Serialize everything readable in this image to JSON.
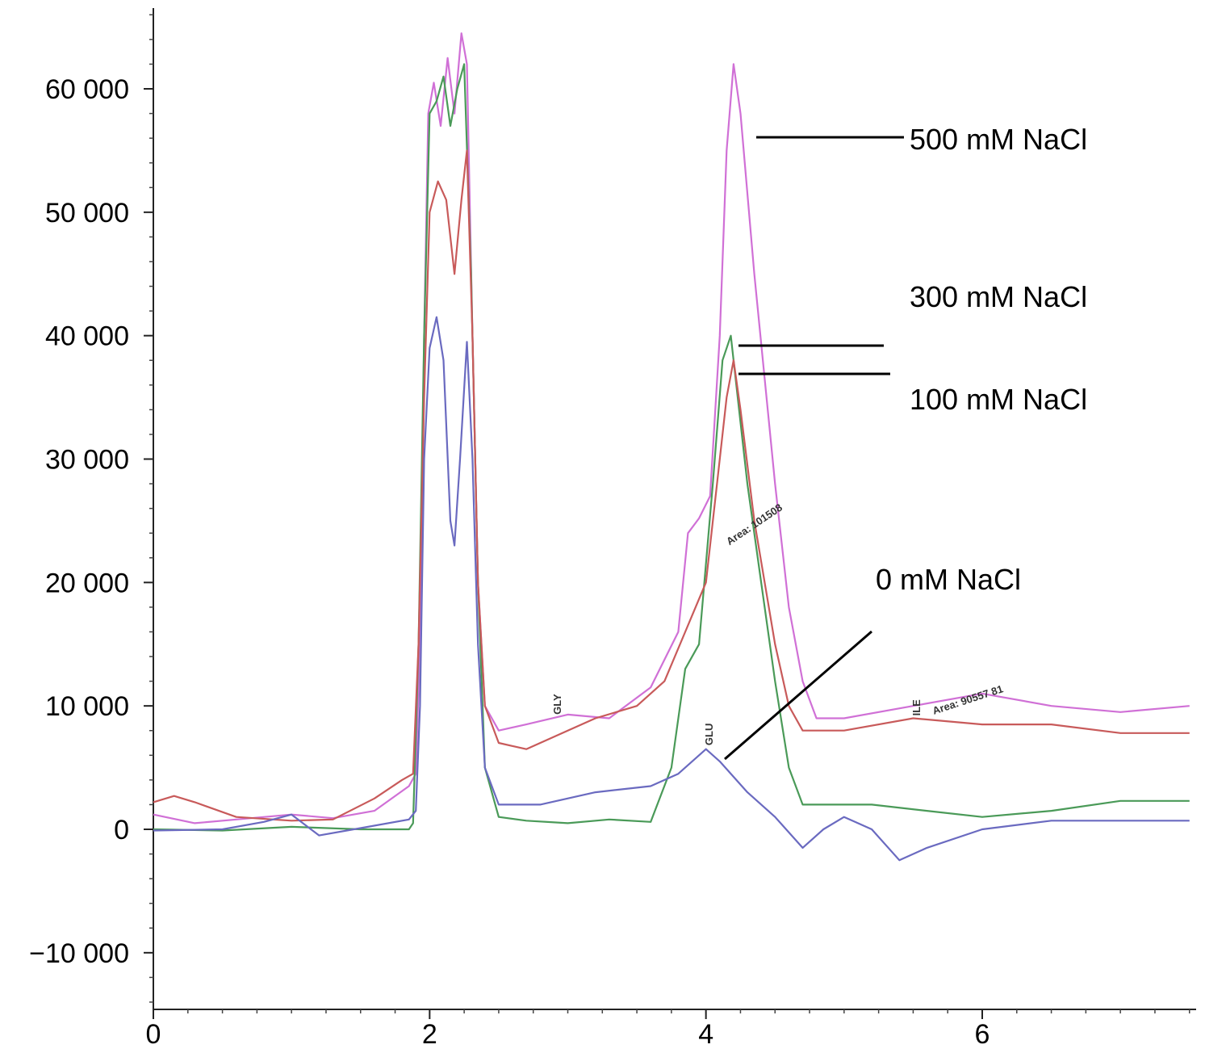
{
  "chart_data": {
    "type": "line",
    "title": "",
    "xlabel": "",
    "ylabel": "",
    "xlim": [
      0,
      7.5
    ],
    "ylim": [
      -15000,
      66000
    ],
    "x_ticks": [
      {
        "value": 0,
        "label": "0"
      },
      {
        "value": 2,
        "label": "2"
      },
      {
        "value": 4,
        "label": "4"
      },
      {
        "value": 6,
        "label": "6"
      }
    ],
    "y_ticks": [
      {
        "value": -10000,
        "label": "−10 000"
      },
      {
        "value": 0,
        "label": "0"
      },
      {
        "value": 10000,
        "label": "10 000"
      },
      {
        "value": 20000,
        "label": "20 000"
      },
      {
        "value": 30000,
        "label": "30 000"
      },
      {
        "value": 40000,
        "label": "40 000"
      },
      {
        "value": 50000,
        "label": "50 000"
      },
      {
        "value": 60000,
        "label": "60 000"
      }
    ],
    "grid": false,
    "series": [
      {
        "name": "500 mM NaCl",
        "color": "#d070d6",
        "points": [
          [
            0,
            1200
          ],
          [
            0.3,
            500
          ],
          [
            0.6,
            800
          ],
          [
            1.0,
            1200
          ],
          [
            1.3,
            900
          ],
          [
            1.6,
            1500
          ],
          [
            1.85,
            3500
          ],
          [
            1.9,
            4500
          ],
          [
            1.93,
            15000
          ],
          [
            1.96,
            40000
          ],
          [
            1.99,
            58000
          ],
          [
            2.03,
            60500
          ],
          [
            2.08,
            57000
          ],
          [
            2.13,
            62500
          ],
          [
            2.18,
            58000
          ],
          [
            2.23,
            64500
          ],
          [
            2.27,
            62000
          ],
          [
            2.31,
            40000
          ],
          [
            2.35,
            20000
          ],
          [
            2.4,
            10000
          ],
          [
            2.5,
            8000
          ],
          [
            2.7,
            8500
          ],
          [
            3.0,
            9300
          ],
          [
            3.3,
            9000
          ],
          [
            3.6,
            11500
          ],
          [
            3.8,
            16000
          ],
          [
            3.87,
            24000
          ],
          [
            3.95,
            25200
          ],
          [
            4.03,
            27000
          ],
          [
            4.1,
            40000
          ],
          [
            4.15,
            55000
          ],
          [
            4.2,
            62000
          ],
          [
            4.25,
            58000
          ],
          [
            4.35,
            45000
          ],
          [
            4.5,
            28000
          ],
          [
            4.6,
            18000
          ],
          [
            4.7,
            12000
          ],
          [
            4.8,
            9000
          ],
          [
            5.0,
            9000
          ],
          [
            5.5,
            10000
          ],
          [
            6.0,
            11000
          ],
          [
            6.5,
            10000
          ],
          [
            7.0,
            9500
          ],
          [
            7.5,
            10000
          ]
        ]
      },
      {
        "name": "300 mM NaCl",
        "color": "#4a9a58",
        "points": [
          [
            0,
            0
          ],
          [
            0.5,
            -100
          ],
          [
            1.0,
            200
          ],
          [
            1.5,
            0
          ],
          [
            1.85,
            0
          ],
          [
            1.88,
            500
          ],
          [
            1.92,
            15000
          ],
          [
            1.96,
            40000
          ],
          [
            2.0,
            58000
          ],
          [
            2.05,
            59000
          ],
          [
            2.1,
            61000
          ],
          [
            2.15,
            57000
          ],
          [
            2.2,
            60000
          ],
          [
            2.25,
            62000
          ],
          [
            2.3,
            45000
          ],
          [
            2.35,
            20000
          ],
          [
            2.4,
            5000
          ],
          [
            2.5,
            1000
          ],
          [
            2.7,
            700
          ],
          [
            3.0,
            500
          ],
          [
            3.3,
            800
          ],
          [
            3.6,
            600
          ],
          [
            3.75,
            5000
          ],
          [
            3.85,
            13000
          ],
          [
            3.95,
            15000
          ],
          [
            4.05,
            28000
          ],
          [
            4.12,
            38000
          ],
          [
            4.18,
            40000
          ],
          [
            4.22,
            36000
          ],
          [
            4.3,
            28000
          ],
          [
            4.4,
            20000
          ],
          [
            4.5,
            12000
          ],
          [
            4.6,
            5000
          ],
          [
            4.7,
            2000
          ],
          [
            4.8,
            2000
          ],
          [
            5.2,
            2000
          ],
          [
            5.6,
            1500
          ],
          [
            6.0,
            1000
          ],
          [
            6.5,
            1500
          ],
          [
            7.0,
            2300
          ],
          [
            7.5,
            2300
          ]
        ]
      },
      {
        "name": "100 mM NaCl",
        "color": "#c85a5a",
        "points": [
          [
            0,
            2200
          ],
          [
            0.15,
            2700
          ],
          [
            0.3,
            2200
          ],
          [
            0.6,
            1000
          ],
          [
            1.0,
            700
          ],
          [
            1.3,
            800
          ],
          [
            1.6,
            2500
          ],
          [
            1.8,
            4000
          ],
          [
            1.88,
            4500
          ],
          [
            1.92,
            15000
          ],
          [
            1.96,
            35000
          ],
          [
            2.0,
            50000
          ],
          [
            2.06,
            52500
          ],
          [
            2.12,
            51000
          ],
          [
            2.18,
            45000
          ],
          [
            2.23,
            51000
          ],
          [
            2.27,
            55000
          ],
          [
            2.31,
            40000
          ],
          [
            2.35,
            20000
          ],
          [
            2.4,
            10000
          ],
          [
            2.5,
            7000
          ],
          [
            2.7,
            6500
          ],
          [
            3.0,
            8000
          ],
          [
            3.2,
            9000
          ],
          [
            3.5,
            10000
          ],
          [
            3.7,
            12000
          ],
          [
            3.85,
            16000
          ],
          [
            4.0,
            20000
          ],
          [
            4.1,
            30000
          ],
          [
            4.15,
            35000
          ],
          [
            4.2,
            38000
          ],
          [
            4.25,
            34000
          ],
          [
            4.35,
            25000
          ],
          [
            4.5,
            15000
          ],
          [
            4.6,
            10000
          ],
          [
            4.7,
            8000
          ],
          [
            5.0,
            8000
          ],
          [
            5.5,
            9000
          ],
          [
            6.0,
            8500
          ],
          [
            6.5,
            8500
          ],
          [
            7.0,
            7800
          ],
          [
            7.5,
            7800
          ]
        ]
      },
      {
        "name": "0 mM NaCl",
        "color": "#6a6ac0",
        "points": [
          [
            0,
            -100
          ],
          [
            0.5,
            0
          ],
          [
            0.8,
            600
          ],
          [
            1.0,
            1200
          ],
          [
            1.2,
            -500
          ],
          [
            1.5,
            100
          ],
          [
            1.85,
            800
          ],
          [
            1.9,
            1500
          ],
          [
            1.93,
            10000
          ],
          [
            1.96,
            30000
          ],
          [
            2.0,
            39000
          ],
          [
            2.05,
            41500
          ],
          [
            2.1,
            38000
          ],
          [
            2.15,
            25000
          ],
          [
            2.18,
            23000
          ],
          [
            2.22,
            30000
          ],
          [
            2.27,
            39500
          ],
          [
            2.31,
            30000
          ],
          [
            2.35,
            15000
          ],
          [
            2.4,
            5000
          ],
          [
            2.5,
            2000
          ],
          [
            2.8,
            2000
          ],
          [
            3.2,
            3000
          ],
          [
            3.6,
            3500
          ],
          [
            3.8,
            4500
          ],
          [
            4.0,
            6500
          ],
          [
            4.1,
            5500
          ],
          [
            4.3,
            3000
          ],
          [
            4.5,
            1000
          ],
          [
            4.7,
            -1500
          ],
          [
            4.85,
            0
          ],
          [
            5.0,
            1000
          ],
          [
            5.2,
            0
          ],
          [
            5.4,
            -2500
          ],
          [
            5.6,
            -1500
          ],
          [
            6.0,
            0
          ],
          [
            6.5,
            700
          ],
          [
            7.0,
            700
          ],
          [
            7.5,
            700
          ]
        ]
      }
    ],
    "annotations": [
      {
        "text": "500 mM NaCl",
        "series": "500 mM NaCl"
      },
      {
        "text": "300 mM NaCl",
        "series": "300 mM NaCl"
      },
      {
        "text": "100 mM NaCl",
        "series": "100 mM NaCl"
      },
      {
        "text": "0 mM NaCl",
        "series": "0 mM NaCl"
      }
    ],
    "peak_labels": [
      {
        "text": "GLY",
        "x": 2.95,
        "y": 9300,
        "rotate": -90
      },
      {
        "text": "GLU",
        "x": 4.05,
        "y": 6800,
        "rotate": -90
      },
      {
        "text": "ILE",
        "x": 5.55,
        "y": 9200,
        "rotate": -90
      },
      {
        "text": "Area: 101508",
        "x": 4.17,
        "y": 23000,
        "rotate": -34
      },
      {
        "text": "Area: 90557 81",
        "x": 5.65,
        "y": 9300,
        "rotate": -18
      }
    ]
  }
}
